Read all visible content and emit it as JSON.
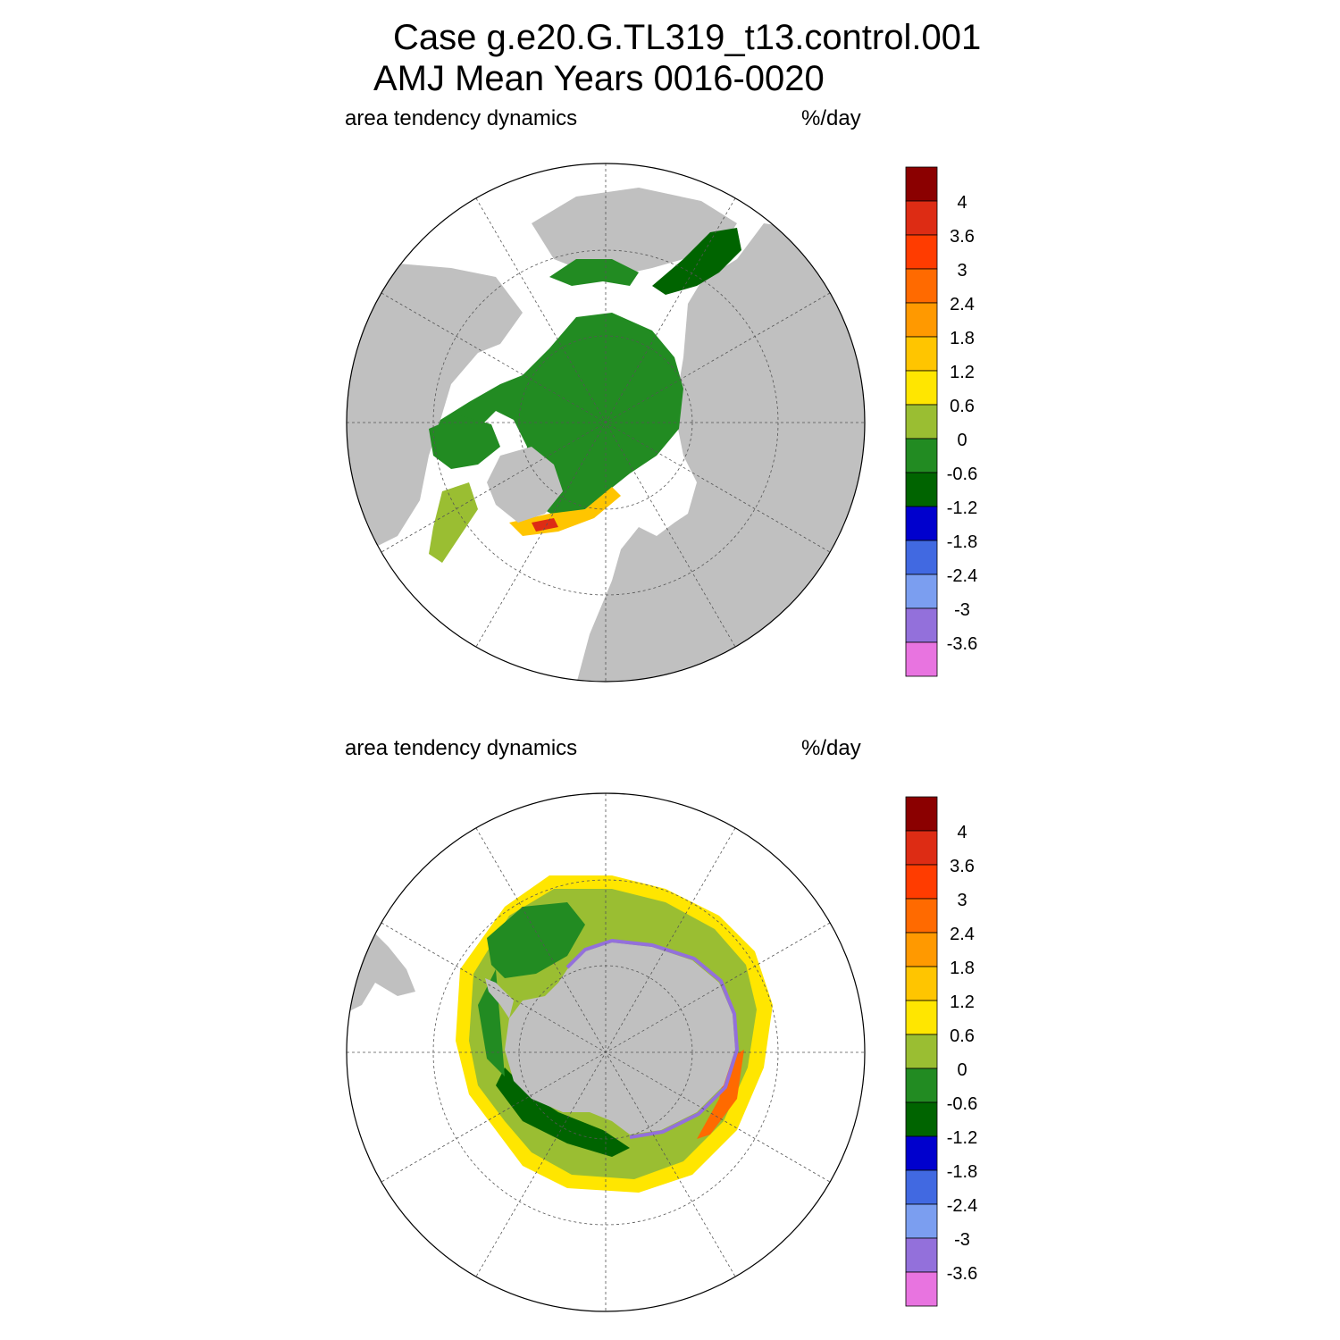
{
  "title": {
    "line1": "Case g.e20.G.TL319_t13.control.001",
    "line2": "AMJ Mean   Years 0016-0020"
  },
  "panels": [
    {
      "id": "north",
      "left_label": "area tendency dynamics",
      "right_label": "%/day"
    },
    {
      "id": "south",
      "left_label": "area tendency dynamics",
      "right_label": "%/day"
    }
  ],
  "colorbar": {
    "tick_labels": [
      "4",
      "3.6",
      "3",
      "2.4",
      "1.8",
      "1.2",
      "0.6",
      "0",
      "-0.6",
      "-1.2",
      "-1.8",
      "-2.4",
      "-3",
      "-3.6"
    ],
    "colors": [
      "#8b0000",
      "#dd2c14",
      "#ff3c00",
      "#ff6a00",
      "#ff9900",
      "#ffc500",
      "#ffe600",
      "#9abe32",
      "#228b22",
      "#006400",
      "#0000cd",
      "#4169e1",
      "#7b9ef0",
      "#9370db",
      "#e874e0"
    ]
  },
  "map_colors": {
    "land": "#c0c0c0",
    "ocean": "#ffffff",
    "coast": "#000000"
  }
}
